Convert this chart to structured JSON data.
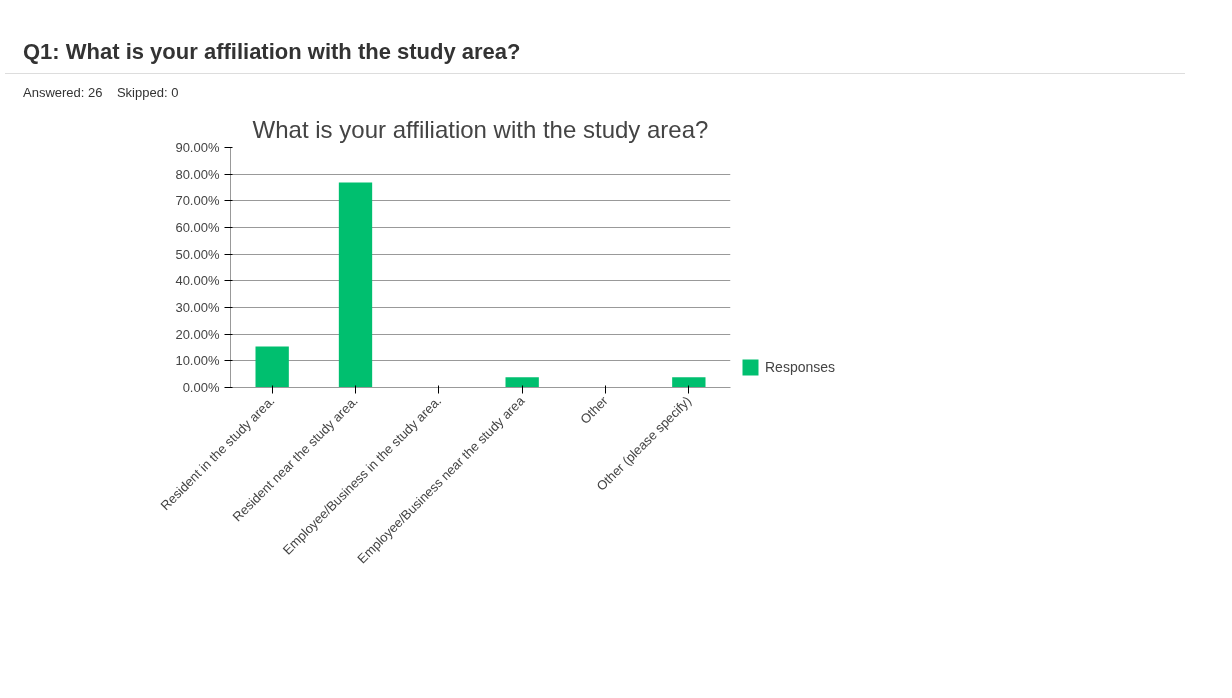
{
  "chart_data": {
    "type": "bar",
    "title": "Q1: What is your affiliation with the study area?",
    "subtitle": "What is your affiliation with the study area?",
    "annotations": [
      "Answered: 26    Skipped: 0"
    ],
    "categories": [
      "Resident in the study area.",
      "Resident near the study area.",
      "Employee/Business in the study area.",
      "Employee/Business near the study area",
      "Other",
      "Other (please specify)"
    ],
    "series": [
      {
        "name": "Responses",
        "color": "#00bf6f",
        "values": [
          15.4,
          76.9,
          0,
          3.8,
          0,
          3.8
        ]
      }
    ],
    "ylim": [
      0,
      90
    ],
    "yticks": [
      {
        "value": 0,
        "label": "0.00%"
      },
      {
        "value": 10,
        "label": "10.00%"
      },
      {
        "value": 20,
        "label": "20.00%"
      },
      {
        "value": 30,
        "label": "30.00%"
      },
      {
        "value": 40,
        "label": "40.00%"
      },
      {
        "value": 50,
        "label": "50.00%"
      },
      {
        "value": 60,
        "label": "60.00%"
      },
      {
        "value": 70,
        "label": "70.00%"
      },
      {
        "value": 80,
        "label": "80.00%"
      },
      {
        "value": 90,
        "label": "90.00%"
      }
    ],
    "grid": "y",
    "legend": "right"
  }
}
